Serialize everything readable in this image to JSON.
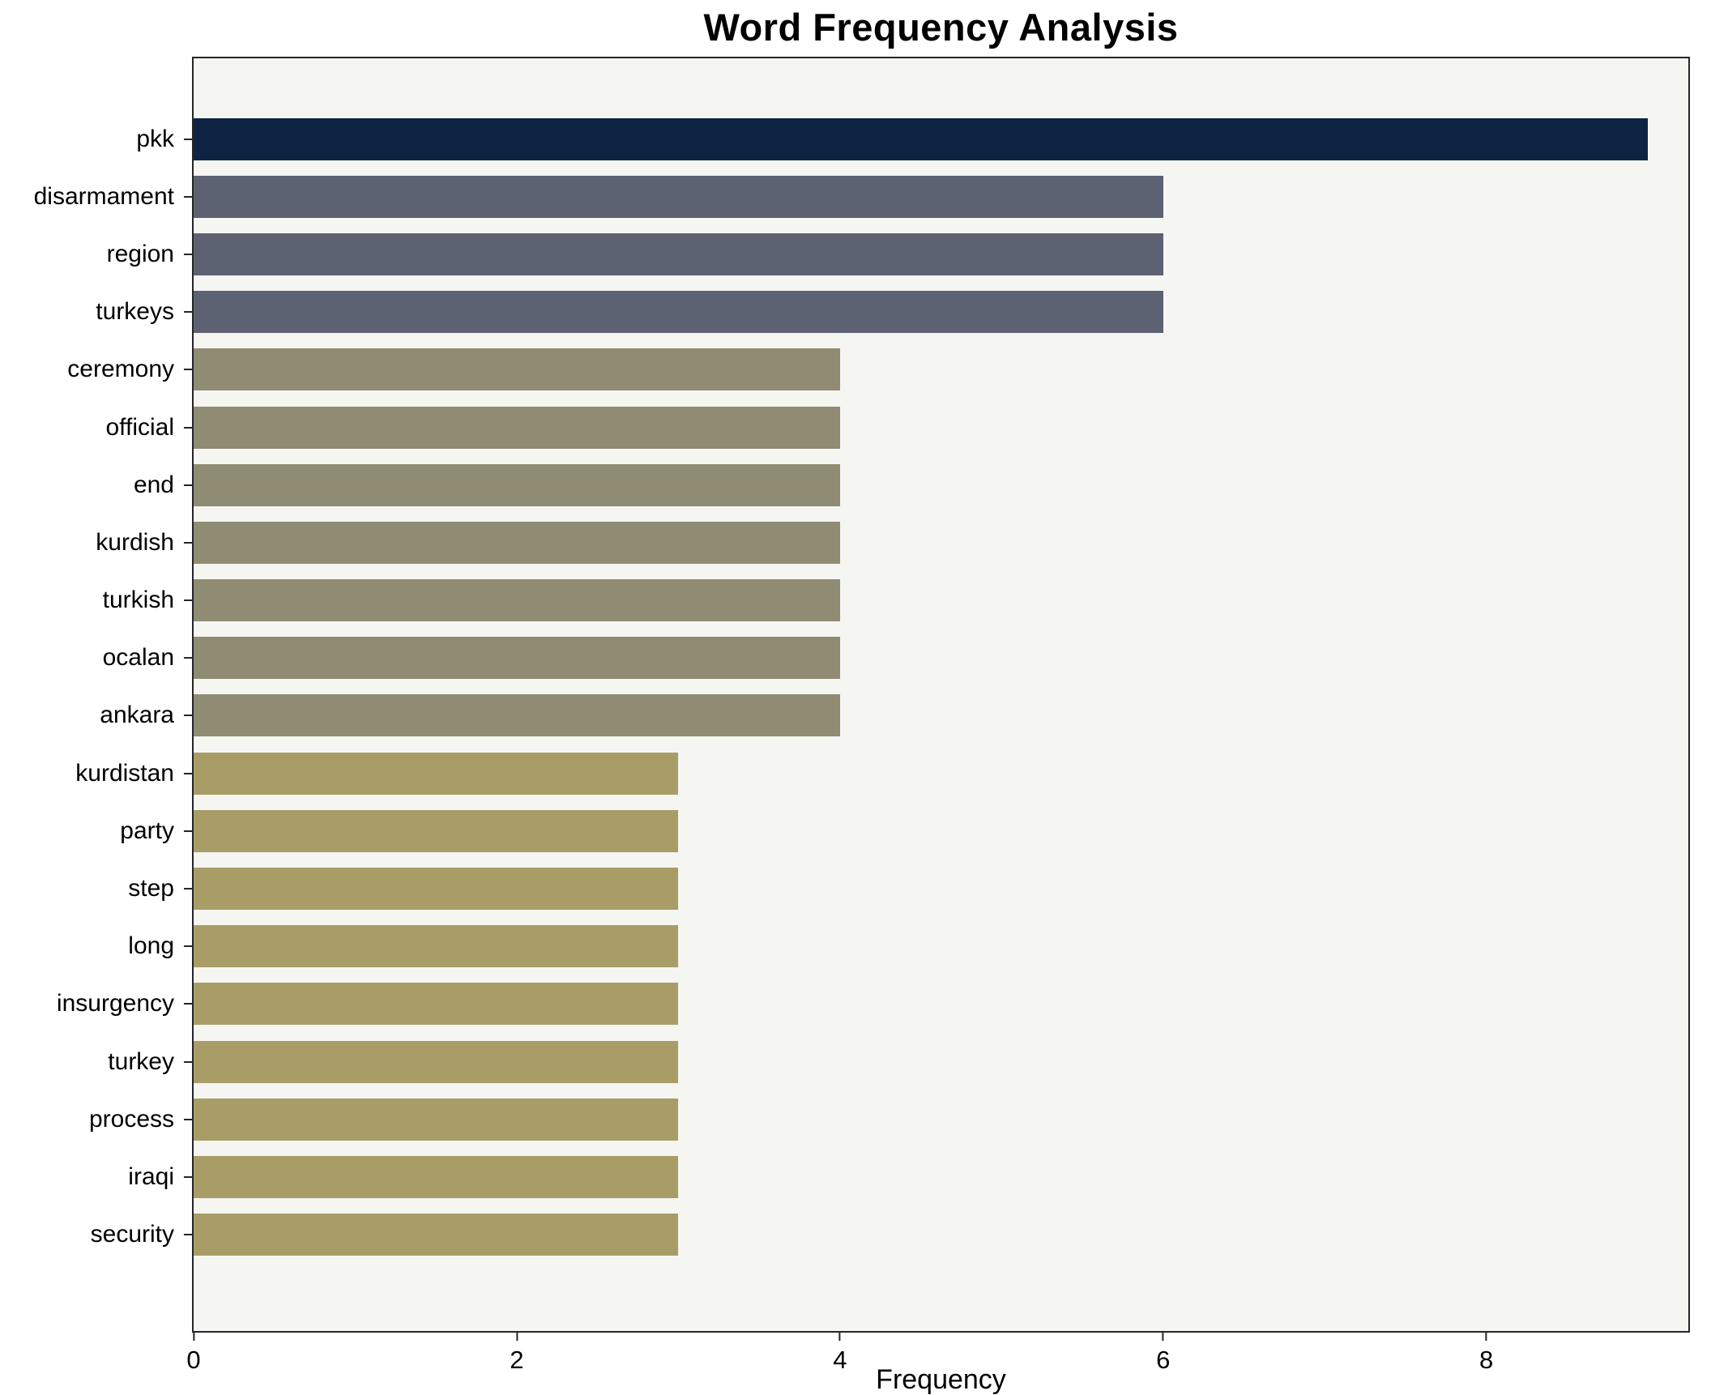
{
  "page": {
    "background": "#ffffff"
  },
  "chart_data": {
    "type": "bar",
    "orientation": "horizontal",
    "title": "Word Frequency Analysis",
    "xlabel": "Frequency",
    "ylabel": "",
    "xlim": [
      0,
      9.25
    ],
    "xticks": [
      0,
      2,
      4,
      6,
      8
    ],
    "grid": false,
    "legend": false,
    "plot_background": "#f5f5f2",
    "axis_color": "#262626",
    "categories": [
      "pkk",
      "disarmament",
      "region",
      "turkeys",
      "ceremony",
      "official",
      "end",
      "kurdish",
      "turkish",
      "ocalan",
      "ankara",
      "kurdistan",
      "party",
      "step",
      "long",
      "insurgency",
      "turkey",
      "process",
      "iraqi",
      "security"
    ],
    "values": [
      9,
      6,
      6,
      6,
      4,
      4,
      4,
      4,
      4,
      4,
      4,
      3,
      3,
      3,
      3,
      3,
      3,
      3,
      3,
      3
    ],
    "bar_colors": [
      "#0e2442",
      "#5c6272",
      "#5c6272",
      "#5c6272",
      "#908c74",
      "#908c74",
      "#908c74",
      "#908c74",
      "#908c74",
      "#908c74",
      "#908c74",
      "#a89d67",
      "#a89d67",
      "#a89d67",
      "#a89d67",
      "#a89d67",
      "#a89d67",
      "#a89d67",
      "#a89d67",
      "#a89d67"
    ]
  }
}
